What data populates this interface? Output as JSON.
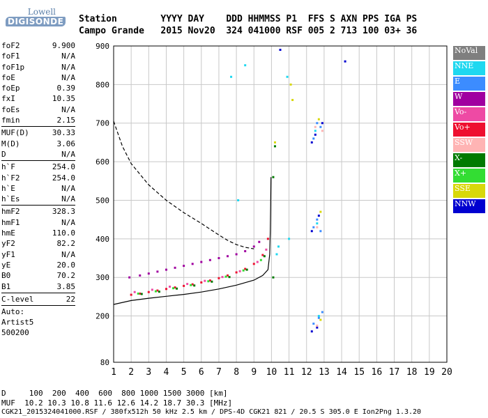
{
  "header": {
    "logo_line1": "Lowell",
    "logo_line2": "DIGISONDE",
    "row1": "Station        YYYY DAY    DDD HHMMSS P1  FFS S AXN PPS IGA PS",
    "row2": "Campo Grande   2015 Nov20  324 041000 RSF 005 2 713 100 03+ 36"
  },
  "params": [
    {
      "label": "foF2",
      "value": "9.900"
    },
    {
      "label": "foF1",
      "value": "N/A"
    },
    {
      "label": "foF1p",
      "value": "N/A"
    },
    {
      "label": "foE",
      "value": "N/A"
    },
    {
      "label": "foEp",
      "value": "0.39"
    },
    {
      "label": "fxI",
      "value": "10.35"
    },
    {
      "label": "foEs",
      "value": "N/A"
    },
    {
      "label": "fmin",
      "value": "2.15"
    },
    {
      "sep": true
    },
    {
      "label": "MUF(D)",
      "value": "30.33"
    },
    {
      "label": "M(D)",
      "value": "3.06"
    },
    {
      "label": "D",
      "value": "N/A"
    },
    {
      "sep": true
    },
    {
      "label": "h`F",
      "value": "254.0"
    },
    {
      "label": "h`F2",
      "value": "254.0"
    },
    {
      "label": "h`E",
      "value": "N/A"
    },
    {
      "label": "h`Es",
      "value": "N/A"
    },
    {
      "sep": true
    },
    {
      "label": "hmF2",
      "value": "328.3"
    },
    {
      "label": "hmF1",
      "value": "N/A"
    },
    {
      "label": "hmE",
      "value": "110.0"
    },
    {
      "label": "yF2",
      "value": "82.2"
    },
    {
      "label": "yF1",
      "value": "N/A"
    },
    {
      "label": "yE",
      "value": "20.0"
    },
    {
      "label": "B0",
      "value": "70.2"
    },
    {
      "label": "B1",
      "value": "3.85"
    },
    {
      "sep": true
    },
    {
      "label": "C-level",
      "value": "22"
    },
    {
      "sep": true
    },
    {
      "text": "Auto:"
    },
    {
      "text": "Artist5"
    },
    {
      "text": "500200"
    }
  ],
  "legend": [
    {
      "label": "NoVal",
      "color": "#7f7f7f"
    },
    {
      "label": "NNE",
      "color": "#1ed8f0"
    },
    {
      "label": "E",
      "color": "#3c8cff"
    },
    {
      "label": "W",
      "color": "#a000a0"
    },
    {
      "label": "Vo-",
      "color": "#ee4aa4"
    },
    {
      "label": "Vo+",
      "color": "#ee1030"
    },
    {
      "label": "SSW",
      "color": "#ffb4b4"
    },
    {
      "label": "X-",
      "color": "#007a00"
    },
    {
      "label": "X+",
      "color": "#33dd33"
    },
    {
      "label": "SSE",
      "color": "#d8d80a"
    },
    {
      "label": "NNW",
      "color": "#0000d0"
    }
  ],
  "chart_data": {
    "type": "scatter",
    "x_ticks": [
      1,
      2,
      3,
      4,
      5,
      6,
      7,
      8,
      9,
      10,
      11,
      12,
      13,
      14,
      15,
      16,
      17,
      18,
      19,
      20
    ],
    "y_ticks": [
      80,
      200,
      300,
      400,
      500,
      600,
      700,
      800,
      900
    ],
    "xlim": [
      1,
      20
    ],
    "ylim": [
      80,
      900
    ],
    "grid": true,
    "xlabel": "",
    "ylabel": "",
    "series": [
      {
        "color": "#a000a0",
        "points": [
          [
            1.9,
            300
          ],
          [
            2.5,
            305
          ],
          [
            3,
            310
          ],
          [
            3.5,
            315
          ],
          [
            4,
            320
          ],
          [
            4.5,
            325
          ],
          [
            5,
            330
          ],
          [
            5.5,
            335
          ],
          [
            6,
            340
          ],
          [
            6.5,
            345
          ],
          [
            7,
            350
          ],
          [
            7.5,
            355
          ],
          [
            8,
            360
          ],
          [
            8.5,
            368
          ],
          [
            9,
            380
          ],
          [
            9.3,
            392
          ]
        ]
      },
      {
        "color": "#ee1030",
        "points": [
          [
            2,
            255
          ],
          [
            2.5,
            258
          ],
          [
            3,
            262
          ],
          [
            3.5,
            266
          ],
          [
            4,
            270
          ],
          [
            4.5,
            274
          ],
          [
            5,
            278
          ],
          [
            5.5,
            282
          ],
          [
            6,
            287
          ],
          [
            6.5,
            292
          ],
          [
            7,
            298
          ],
          [
            7.5,
            305
          ],
          [
            8,
            313
          ],
          [
            8.5,
            322
          ],
          [
            9,
            335
          ],
          [
            9.5,
            358
          ],
          [
            9.8,
            400
          ]
        ]
      },
      {
        "color": "#ee4aa4",
        "points": [
          [
            2.2,
            262
          ],
          [
            3.2,
            268
          ],
          [
            4.2,
            276
          ],
          [
            5.2,
            283
          ],
          [
            6.2,
            291
          ],
          [
            7.2,
            301
          ],
          [
            8.2,
            316
          ],
          [
            9.2,
            340
          ],
          [
            9.7,
            372
          ]
        ]
      },
      {
        "color": "#33dd33",
        "points": [
          [
            2.4,
            258
          ],
          [
            3.4,
            264
          ],
          [
            4.4,
            272
          ],
          [
            5.4,
            280
          ],
          [
            6.4,
            290
          ],
          [
            7.4,
            302
          ],
          [
            8.4,
            318
          ],
          [
            9.4,
            345
          ]
        ]
      },
      {
        "color": "#007a00",
        "points": [
          [
            2.6,
            257
          ],
          [
            3.6,
            263
          ],
          [
            4.6,
            271
          ],
          [
            5.6,
            279
          ],
          [
            6.6,
            289
          ],
          [
            7.6,
            301
          ],
          [
            8.6,
            320
          ],
          [
            9.6,
            355
          ],
          [
            10.1,
            300
          ],
          [
            10.1,
            560
          ],
          [
            10.2,
            640
          ]
        ]
      },
      {
        "color": "#1ed8f0",
        "points": [
          [
            10.3,
            360
          ],
          [
            10.4,
            380
          ],
          [
            10.9,
            820
          ],
          [
            11.0,
            400
          ],
          [
            12.5,
            680
          ],
          [
            12.6,
            440
          ],
          [
            12.7,
            200
          ],
          [
            7.7,
            820
          ],
          [
            8.1,
            500
          ],
          [
            8.5,
            850
          ]
        ]
      },
      {
        "color": "#3c8cff",
        "points": [
          [
            12.4,
            660
          ],
          [
            12.6,
            700
          ],
          [
            12.8,
            690
          ],
          [
            12.4,
            430
          ],
          [
            12.6,
            450
          ],
          [
            12.8,
            420
          ],
          [
            12.4,
            180
          ],
          [
            12.7,
            195
          ],
          [
            12.9,
            210
          ]
        ]
      },
      {
        "color": "#0000d0",
        "points": [
          [
            12.3,
            650
          ],
          [
            12.5,
            670
          ],
          [
            12.9,
            700
          ],
          [
            12.3,
            420
          ],
          [
            12.7,
            460
          ],
          [
            12.3,
            160
          ],
          [
            12.6,
            170
          ],
          [
            14.2,
            860
          ],
          [
            10.5,
            890
          ]
        ]
      },
      {
        "color": "#d8d80a",
        "points": [
          [
            11.2,
            760
          ],
          [
            12.7,
            710
          ],
          [
            12.8,
            470
          ],
          [
            12.8,
            190
          ],
          [
            10.2,
            650
          ],
          [
            11.1,
            800
          ]
        ]
      },
      {
        "color": "#ffb4b4",
        "points": [
          [
            12.5,
            690
          ],
          [
            12.6,
            430
          ],
          [
            12.6,
            175
          ],
          [
            12.9,
            680
          ]
        ]
      }
    ],
    "profile": {
      "color": "#000",
      "points": [
        [
          1,
          230
        ],
        [
          2,
          240
        ],
        [
          3,
          246
        ],
        [
          4,
          251
        ],
        [
          5,
          256
        ],
        [
          6,
          262
        ],
        [
          7,
          270
        ],
        [
          8,
          280
        ],
        [
          9,
          293
        ],
        [
          9.5,
          305
        ],
        [
          9.8,
          320
        ],
        [
          9.9,
          360
        ],
        [
          9.93,
          420
        ],
        [
          9.95,
          480
        ],
        [
          9.97,
          560
        ]
      ]
    },
    "profile_dashed": {
      "color": "#000",
      "points": [
        [
          1,
          705
        ],
        [
          1.5,
          640
        ],
        [
          2,
          595
        ],
        [
          3,
          540
        ],
        [
          4,
          500
        ],
        [
          5,
          468
        ],
        [
          6,
          440
        ],
        [
          7,
          410
        ],
        [
          7.5,
          396
        ],
        [
          8,
          385
        ],
        [
          8.5,
          378
        ],
        [
          9,
          374
        ]
      ]
    }
  },
  "footer": {
    "line1": "D     100  200  400  600  800 1000 1500 3000 [km]",
    "line2": "MUF  10.2 10.3 10.8 11.6 12.6 14.2 18.7 30.3 [MHz]",
    "line3": "CGK21_2015324041000.RSF / 380fx512h 50 kHz 2.5 km / DPS-4D CGK21 821 / 20.5 S 305.0 E Ion2Png 1.3.20"
  }
}
